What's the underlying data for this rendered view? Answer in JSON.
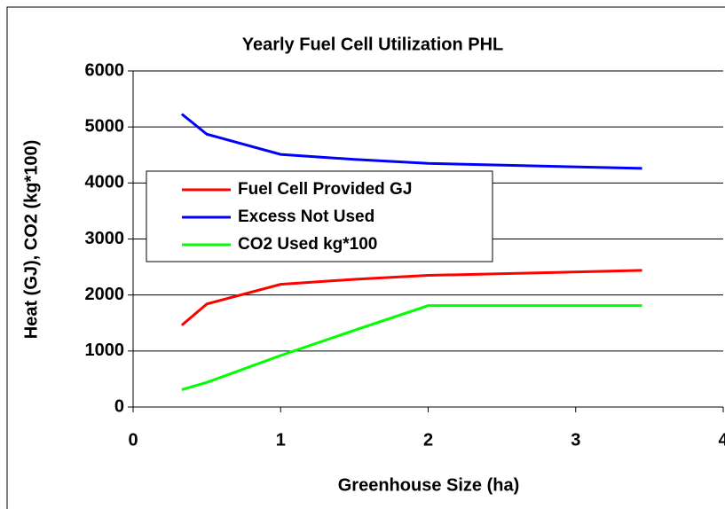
{
  "chart_data": {
    "type": "line",
    "title": "Yearly Fuel Cell Utilization PHL",
    "x_label": "Greenhouse Size (ha)",
    "y_label": "Heat (GJ), CO2 (kg*100)",
    "x": [
      0.33,
      0.5,
      1,
      1.5,
      2,
      3.45
    ],
    "series": [
      {
        "name": "Fuel Cell Provided GJ",
        "color": "#ff0000",
        "values": [
          1460,
          1840,
          2190,
          2280,
          2350,
          2440
        ]
      },
      {
        "name": "Excess Not Used",
        "color": "#0000ff",
        "values": [
          5230,
          4870,
          4510,
          4420,
          4350,
          4260
        ]
      },
      {
        "name": "CO2 Used kg*100",
        "color": "#00ff00",
        "values": [
          310,
          440,
          920,
          1370,
          1810,
          1810
        ]
      }
    ],
    "xlim": [
      0,
      4
    ],
    "xticks": [
      0,
      1,
      2,
      3,
      4
    ],
    "ylim": [
      0,
      6000
    ],
    "yticks": [
      0,
      1000,
      2000,
      3000,
      4000,
      5000,
      6000
    ],
    "grid": true,
    "legend": "center-left"
  }
}
